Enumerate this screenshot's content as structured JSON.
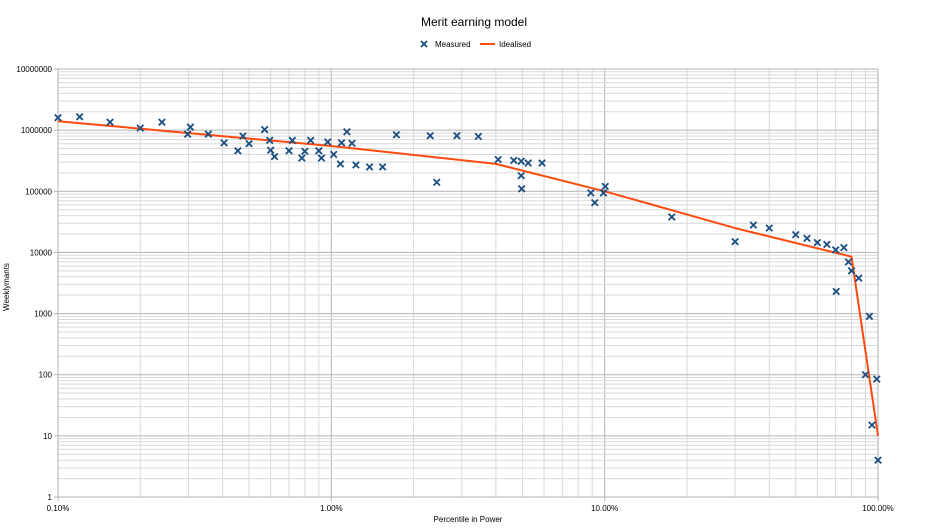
{
  "chart_data": {
    "type": "scatter",
    "title": "Merit earning model",
    "xlabel": "Percentile in Power",
    "ylabel": "Weeklymants",
    "xscale": "log",
    "yscale": "log",
    "xlim": [
      0.001,
      1.0
    ],
    "ylim": [
      1,
      10000000
    ],
    "x_ticks": [
      {
        "value": 0.001,
        "label": "0.10%"
      },
      {
        "value": 0.01,
        "label": "1.00%"
      },
      {
        "value": 0.1,
        "label": "10.00%"
      },
      {
        "value": 1.0,
        "label": "100.00%"
      }
    ],
    "y_ticks": [
      {
        "value": 1,
        "label": "1"
      },
      {
        "value": 10,
        "label": "10"
      },
      {
        "value": 100,
        "label": "100"
      },
      {
        "value": 1000,
        "label": "1000"
      },
      {
        "value": 10000,
        "label": "10000"
      },
      {
        "value": 100000,
        "label": "100000"
      },
      {
        "value": 1000000,
        "label": "1000000"
      },
      {
        "value": 10000000,
        "label": "10000000"
      }
    ],
    "grid": true,
    "legend": "top-center",
    "series": [
      {
        "name": "Measured",
        "style": "marker-x",
        "color": "#1a4f80",
        "points": [
          [
            0.001,
            1600000
          ],
          [
            0.0012,
            1650000
          ],
          [
            0.00155,
            1350000
          ],
          [
            0.002,
            1080000
          ],
          [
            0.0024,
            1350000
          ],
          [
            0.00298,
            860000
          ],
          [
            0.00305,
            1120000
          ],
          [
            0.00355,
            860000
          ],
          [
            0.00405,
            620000
          ],
          [
            0.00455,
            460000
          ],
          [
            0.00475,
            800000
          ],
          [
            0.005,
            600000
          ],
          [
            0.0057,
            1020000
          ],
          [
            0.00595,
            680000
          ],
          [
            0.006,
            470000
          ],
          [
            0.0062,
            370000
          ],
          [
            0.007,
            460000
          ],
          [
            0.0072,
            680000
          ],
          [
            0.0078,
            350000
          ],
          [
            0.008,
            450000
          ],
          [
            0.0084,
            680000
          ],
          [
            0.009,
            460000
          ],
          [
            0.0092,
            350000
          ],
          [
            0.0097,
            640000
          ],
          [
            0.0102,
            400000
          ],
          [
            0.0108,
            280000
          ],
          [
            0.0109,
            620000
          ],
          [
            0.0114,
            940000
          ],
          [
            0.0119,
            610000
          ],
          [
            0.0123,
            270000
          ],
          [
            0.0138,
            250000
          ],
          [
            0.0154,
            250000
          ],
          [
            0.0173,
            840000
          ],
          [
            0.023,
            810000
          ],
          [
            0.0243,
            140000
          ],
          [
            0.0288,
            810000
          ],
          [
            0.0345,
            790000
          ],
          [
            0.0408,
            330000
          ],
          [
            0.0465,
            320000
          ],
          [
            0.0495,
            310000
          ],
          [
            0.0495,
            180000
          ],
          [
            0.0497,
            110000
          ],
          [
            0.0525,
            290000
          ],
          [
            0.059,
            290000
          ],
          [
            0.089,
            94000
          ],
          [
            0.092,
            65000
          ],
          [
            0.099,
            94000
          ],
          [
            0.1005,
            120000
          ],
          [
            0.176,
            38000
          ],
          [
            0.3,
            15000
          ],
          [
            0.35,
            28000
          ],
          [
            0.4,
            25000
          ],
          [
            0.5,
            19500
          ],
          [
            0.55,
            17000
          ],
          [
            0.6,
            14500
          ],
          [
            0.65,
            13500
          ],
          [
            0.7,
            11000
          ],
          [
            0.703,
            2300
          ],
          [
            0.75,
            12000
          ],
          [
            0.78,
            7000
          ],
          [
            0.8,
            5000
          ],
          [
            0.85,
            3800
          ],
          [
            0.9,
            100
          ],
          [
            0.93,
            900
          ],
          [
            0.95,
            15
          ],
          [
            0.99,
            85
          ],
          [
            1.0,
            4
          ]
        ]
      },
      {
        "name": "Idealised",
        "style": "line",
        "color": "#ff4a0f",
        "points": [
          [
            0.001,
            1400000
          ],
          [
            0.01,
            550000
          ],
          [
            0.04,
            280000
          ],
          [
            0.1,
            100000
          ],
          [
            0.3,
            25000
          ],
          [
            0.8,
            8500
          ],
          [
            1.0,
            10
          ]
        ]
      }
    ]
  }
}
